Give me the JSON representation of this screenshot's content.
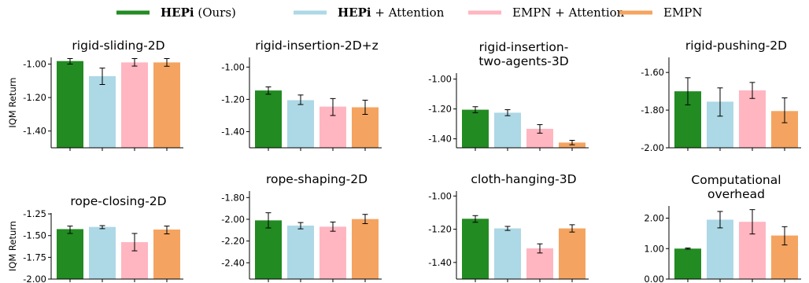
{
  "legend": [
    {
      "bold": "HEPi",
      "rest": " (Ours)",
      "color": "#228b22"
    },
    {
      "bold": "HEPi",
      "rest": " + Attention",
      "color": "#add8e6"
    },
    {
      "bold": "",
      "rest": "EMPN + Attention",
      "color": "#ffb6c1"
    },
    {
      "bold": "",
      "rest": "EMPN",
      "color": "#f4a460"
    }
  ],
  "colors": [
    "#228b22",
    "#add8e6",
    "#ffb6c1",
    "#f4a460"
  ],
  "chart_data": [
    {
      "type": "bar",
      "title": [
        "rigid-sliding-2D"
      ],
      "ylabel": "IQM Return",
      "ylim": [
        -1.5,
        -0.96
      ],
      "yticks": [
        -1.0,
        -1.2,
        -1.4
      ],
      "ytick_labels": [
        "-1.00",
        "-1.20",
        "-1.40"
      ],
      "values": [
        -0.982,
        -1.072,
        -0.99,
        -0.99
      ],
      "err_low": [
        -1.0,
        -1.122,
        -1.012,
        -1.013
      ],
      "err_high": [
        -0.967,
        -1.024,
        -0.967,
        -0.967
      ]
    },
    {
      "type": "bar",
      "title": [
        "rigid-insertion-2D+z"
      ],
      "ylabel": "",
      "ylim": [
        -1.5,
        -0.94
      ],
      "yticks": [
        -1.0,
        -1.2,
        -1.4
      ],
      "ytick_labels": [
        "-1.00",
        "-1.20",
        "-1.40"
      ],
      "values": [
        -1.145,
        -1.205,
        -1.245,
        -1.249
      ],
      "err_low": [
        -1.168,
        -1.232,
        -1.3,
        -1.293
      ],
      "err_high": [
        -1.123,
        -1.173,
        -1.195,
        -1.205
      ]
    },
    {
      "type": "bar",
      "title": [
        "rigid-insertion-",
        "two-agents-3D"
      ],
      "ylabel": "",
      "ylim": [
        -1.46,
        -0.96
      ],
      "yticks": [
        -1.0,
        -1.2,
        -1.4
      ],
      "ytick_labels": [
        "-1.00",
        "-1.20",
        "-1.40"
      ],
      "values": [
        -1.205,
        -1.225,
        -1.333,
        -1.425
      ],
      "err_low": [
        -1.225,
        -1.245,
        -1.362,
        -1.44
      ],
      "err_high": [
        -1.185,
        -1.205,
        -1.305,
        -1.41
      ]
    },
    {
      "type": "bar",
      "title": [
        "rigid-pushing-2D"
      ],
      "ylabel": "",
      "ylim": [
        -2.0,
        -1.52
      ],
      "yticks": [
        -1.6,
        -1.8,
        -2.0
      ],
      "ytick_labels": [
        "-1.60",
        "-1.80",
        "-2.00"
      ],
      "values": [
        -1.7,
        -1.755,
        -1.695,
        -1.805
      ],
      "err_low": [
        -1.772,
        -1.832,
        -1.738,
        -1.867
      ],
      "err_high": [
        -1.628,
        -1.682,
        -1.653,
        -1.735
      ]
    },
    {
      "type": "bar",
      "title": [
        "rope-closing-2D"
      ],
      "ylabel": "IQM Return",
      "ylim": [
        -2.0,
        -1.24
      ],
      "yticks": [
        -1.25,
        -1.5,
        -1.75,
        -2.0
      ],
      "ytick_labels": [
        "-1.25",
        "-1.50",
        "-1.75",
        "-2.00"
      ],
      "values": [
        -1.425,
        -1.4,
        -1.575,
        -1.43
      ],
      "err_low": [
        -1.475,
        -1.42,
        -1.675,
        -1.48
      ],
      "err_high": [
        -1.39,
        -1.385,
        -1.475,
        -1.39
      ]
    },
    {
      "type": "bar",
      "title": [
        "rope-shaping-2D"
      ],
      "ylabel": "",
      "ylim": [
        -2.55,
        -1.74
      ],
      "yticks": [
        -1.8,
        -2.0,
        -2.2,
        -2.4
      ],
      "ytick_labels": [
        "-1.80",
        "-2.00",
        "-2.20",
        "-2.40"
      ],
      "values": [
        -2.01,
        -2.058,
        -2.068,
        -1.998
      ],
      "err_low": [
        -2.08,
        -2.088,
        -2.11,
        -2.04
      ],
      "err_high": [
        -1.94,
        -2.03,
        -2.025,
        -1.955
      ]
    },
    {
      "type": "bar",
      "title": [
        "cloth-hanging-3D"
      ],
      "ylabel": "",
      "ylim": [
        -1.5,
        -0.97
      ],
      "yticks": [
        -1.0,
        -1.2,
        -1.4
      ],
      "ytick_labels": [
        "-1.00",
        "-1.20",
        "-1.40"
      ],
      "values": [
        -1.137,
        -1.195,
        -1.315,
        -1.195
      ],
      "err_low": [
        -1.158,
        -1.207,
        -1.343,
        -1.217
      ],
      "err_high": [
        -1.118,
        -1.183,
        -1.288,
        -1.173
      ]
    },
    {
      "type": "bar",
      "title": [
        "Computational",
        "overhead"
      ],
      "ylabel": "",
      "ylim": [
        0.0,
        2.4
      ],
      "yticks": [
        0.0,
        1.0,
        2.0
      ],
      "ytick_labels": [
        "0.00",
        "1.00",
        "2.00"
      ],
      "values": [
        1.0,
        1.95,
        1.88,
        1.43
      ],
      "err_low": [
        0.98,
        1.68,
        1.48,
        1.12
      ],
      "err_high": [
        1.02,
        2.22,
        2.28,
        1.72
      ]
    }
  ]
}
